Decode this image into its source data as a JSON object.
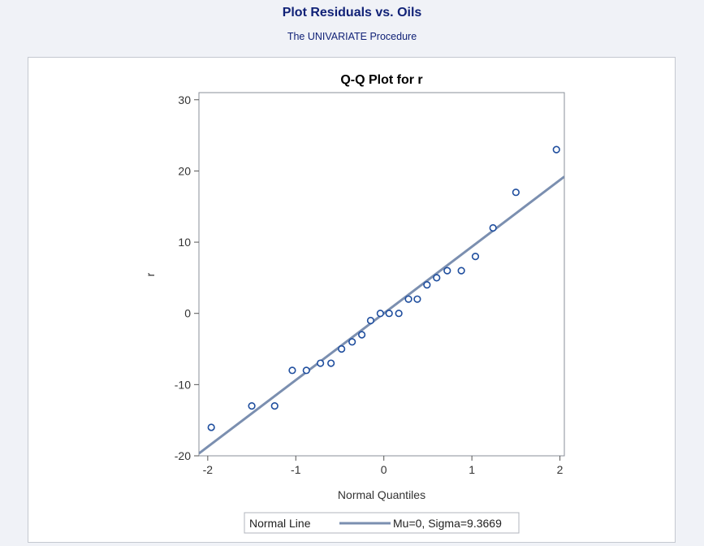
{
  "page": {
    "title": "Plot Residuals vs. Oils",
    "subtitle": "The UNIVARIATE Procedure"
  },
  "chart_data": {
    "type": "scatter",
    "title": "Q-Q Plot for r",
    "xlabel": "Normal Quantiles",
    "ylabel": "r",
    "xlim": [
      -2.1,
      2.05
    ],
    "ylim": [
      -20,
      31
    ],
    "xticks": [
      -2,
      -1,
      0,
      1,
      2
    ],
    "yticks": [
      -20,
      -10,
      0,
      10,
      20,
      30
    ],
    "grid": false,
    "series": [
      {
        "marker": "circle",
        "color": "#1f4e9e",
        "points": [
          {
            "x": -1.96,
            "y": -16
          },
          {
            "x": -1.5,
            "y": -13
          },
          {
            "x": -1.24,
            "y": -13
          },
          {
            "x": -1.04,
            "y": -8
          },
          {
            "x": -0.88,
            "y": -8
          },
          {
            "x": -0.72,
            "y": -7
          },
          {
            "x": -0.6,
            "y": -7
          },
          {
            "x": -0.48,
            "y": -5
          },
          {
            "x": -0.36,
            "y": -4
          },
          {
            "x": -0.25,
            "y": -3
          },
          {
            "x": -0.15,
            "y": -1
          },
          {
            "x": -0.04,
            "y": 0
          },
          {
            "x": 0.06,
            "y": 0
          },
          {
            "x": 0.17,
            "y": 0
          },
          {
            "x": 0.28,
            "y": 2
          },
          {
            "x": 0.38,
            "y": 2
          },
          {
            "x": 0.49,
            "y": 4
          },
          {
            "x": 0.6,
            "y": 5
          },
          {
            "x": 0.72,
            "y": 6
          },
          {
            "x": 0.88,
            "y": 6
          },
          {
            "x": 1.04,
            "y": 8
          },
          {
            "x": 1.24,
            "y": 12
          },
          {
            "x": 1.5,
            "y": 17
          },
          {
            "x": 1.96,
            "y": 23
          }
        ]
      }
    ],
    "reference_line": {
      "name": "Normal Line",
      "mu": 0,
      "sigma": 9.3669,
      "label": "Mu=0, Sigma=9.3669",
      "color": "#7b8fb0"
    },
    "legend": {
      "position": "bottom-center",
      "title": "Normal Line",
      "entry": "Mu=0, Sigma=9.3669"
    }
  }
}
